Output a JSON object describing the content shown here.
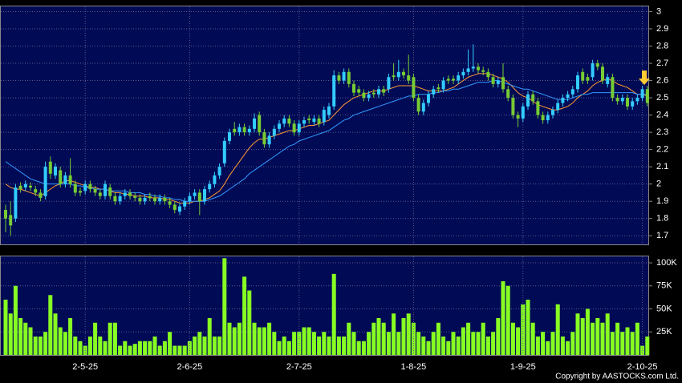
{
  "chart_data": [
    {
      "type": "candlestick",
      "categories": [
        null,
        null,
        null,
        null,
        null,
        null,
        null,
        null,
        null,
        null,
        null,
        null,
        null,
        null,
        null,
        null,
        "2-5-25",
        null,
        null,
        null,
        null,
        null,
        null,
        null,
        null,
        null,
        null,
        null,
        null,
        null,
        null,
        null,
        null,
        null,
        null,
        null,
        null,
        "2-6-25",
        null,
        null,
        null,
        null,
        null,
        null,
        null,
        null,
        null,
        null,
        null,
        null,
        null,
        null,
        null,
        null,
        null,
        null,
        null,
        null,
        null,
        "2-7-25",
        null,
        null,
        null,
        null,
        null,
        null,
        null,
        null,
        null,
        null,
        null,
        null,
        null,
        null,
        null,
        null,
        null,
        null,
        null,
        null,
        null,
        null,
        "1-8-25",
        null,
        null,
        null,
        null,
        null,
        null,
        null,
        null,
        null,
        null,
        null,
        null,
        null,
        null,
        null,
        null,
        null,
        null,
        null,
        null,
        null,
        "1-9-25",
        null,
        null,
        null,
        null,
        null,
        null,
        null,
        null,
        null,
        null,
        null,
        null,
        null,
        null,
        null,
        null,
        null,
        null,
        null,
        null,
        null,
        null,
        null,
        "2-10-25",
        null
      ],
      "open": [
        1.85,
        1.82,
        1.8,
        1.99,
        1.98,
        1.99,
        1.97,
        1.95,
        1.93,
        2.13,
        2.05,
        2.08,
        2.0,
        2.05,
        2.0,
        1.96,
        1.96,
        2.0,
        1.97,
        1.95,
        1.93,
        1.98,
        1.93,
        1.9,
        1.93,
        1.95,
        1.93,
        1.92,
        1.9,
        1.93,
        1.92,
        1.9,
        1.92,
        1.9,
        1.88,
        1.84,
        1.87,
        1.9,
        1.93,
        1.95,
        1.9,
        1.97,
        2.0,
        2.05,
        2.12,
        2.25,
        2.32,
        2.3,
        2.33,
        2.3,
        2.32,
        2.4,
        2.3,
        2.23,
        2.28,
        2.32,
        2.35,
        2.38,
        2.35,
        2.3,
        2.35,
        2.38,
        2.36,
        2.38,
        2.36,
        2.4,
        2.45,
        2.63,
        2.6,
        2.65,
        2.58,
        2.55,
        2.53,
        2.5,
        2.53,
        2.52,
        2.55,
        2.55,
        2.63,
        2.62,
        2.65,
        2.63,
        2.62,
        2.5,
        2.42,
        2.47,
        2.52,
        2.56,
        2.55,
        2.61,
        2.61,
        2.6,
        2.63,
        2.65,
        2.67,
        2.68,
        2.66,
        2.65,
        2.62,
        2.58,
        2.62,
        2.55,
        2.5,
        2.4,
        2.38,
        2.45,
        2.52,
        2.48,
        2.4,
        2.37,
        2.4,
        2.43,
        2.47,
        2.5,
        2.52,
        2.55,
        2.65,
        2.62,
        2.62,
        2.7,
        2.68,
        2.58,
        2.62,
        2.5,
        2.48,
        2.5,
        2.45,
        2.48,
        2.5,
        2.55
      ],
      "high": [
        1.88,
        1.9,
        2.0,
        2.01,
        2.02,
        2.01,
        1.99,
        1.97,
        2.13,
        2.16,
        2.12,
        2.1,
        2.07,
        2.15,
        2.02,
        1.98,
        2.02,
        2.02,
        1.99,
        1.97,
        2.02,
        2.0,
        1.95,
        1.95,
        1.97,
        1.97,
        1.95,
        1.94,
        1.94,
        1.95,
        1.94,
        1.94,
        1.94,
        1.92,
        1.9,
        1.89,
        1.92,
        1.95,
        1.97,
        1.97,
        1.99,
        2.02,
        2.07,
        2.12,
        2.27,
        2.32,
        2.36,
        2.35,
        2.35,
        2.34,
        2.41,
        2.42,
        2.32,
        2.3,
        2.34,
        2.37,
        2.4,
        2.4,
        2.37,
        2.37,
        2.39,
        2.4,
        2.4,
        2.4,
        2.45,
        2.47,
        2.66,
        2.65,
        2.67,
        2.67,
        2.6,
        2.57,
        2.55,
        2.54,
        2.55,
        2.57,
        2.57,
        2.64,
        2.7,
        2.72,
        2.67,
        2.75,
        2.64,
        2.52,
        2.49,
        2.54,
        2.57,
        2.58,
        2.62,
        2.63,
        2.63,
        2.65,
        2.67,
        2.78,
        2.81,
        2.7,
        2.68,
        2.67,
        2.64,
        2.62,
        2.7,
        2.57,
        2.52,
        2.42,
        2.47,
        2.54,
        2.54,
        2.5,
        2.42,
        2.42,
        2.45,
        2.49,
        2.52,
        2.54,
        2.57,
        2.65,
        2.67,
        2.64,
        2.72,
        2.72,
        2.7,
        2.64,
        2.64,
        2.52,
        2.52,
        2.52,
        2.5,
        2.52,
        2.57,
        2.57
      ],
      "low": [
        1.72,
        1.7,
        1.78,
        1.95,
        1.96,
        1.96,
        1.93,
        1.9,
        1.91,
        2.03,
        2.03,
        1.98,
        1.98,
        1.98,
        1.93,
        1.93,
        1.94,
        1.95,
        1.93,
        1.91,
        1.91,
        1.91,
        1.88,
        1.88,
        1.91,
        1.91,
        1.9,
        1.88,
        1.88,
        1.9,
        1.88,
        1.88,
        1.88,
        1.86,
        1.83,
        1.82,
        1.85,
        1.88,
        1.91,
        1.82,
        1.88,
        1.95,
        1.98,
        2.03,
        2.1,
        2.23,
        2.28,
        2.28,
        2.28,
        2.28,
        2.3,
        2.28,
        2.21,
        2.21,
        2.26,
        2.3,
        2.33,
        2.33,
        2.28,
        2.28,
        2.33,
        2.35,
        2.34,
        2.33,
        2.34,
        2.38,
        2.43,
        2.58,
        2.58,
        2.56,
        2.51,
        2.51,
        2.48,
        2.48,
        2.5,
        2.5,
        2.51,
        2.53,
        2.6,
        2.6,
        2.61,
        2.58,
        2.48,
        2.4,
        2.4,
        2.45,
        2.5,
        2.53,
        2.53,
        2.58,
        2.58,
        2.58,
        2.61,
        2.63,
        2.65,
        2.64,
        2.63,
        2.6,
        2.56,
        2.56,
        2.53,
        2.48,
        2.38,
        2.33,
        2.36,
        2.43,
        2.46,
        2.38,
        2.35,
        2.35,
        2.38,
        2.41,
        2.45,
        2.48,
        2.5,
        2.53,
        2.58,
        2.58,
        2.6,
        2.66,
        2.58,
        2.56,
        2.48,
        2.46,
        2.46,
        2.43,
        2.43,
        2.46,
        2.48,
        2.45
      ],
      "close": [
        1.8,
        1.76,
        1.98,
        1.97,
        2.0,
        1.98,
        1.95,
        1.92,
        2.1,
        2.06,
        2.1,
        2.0,
        2.05,
        2.0,
        1.95,
        1.95,
        2.0,
        1.97,
        1.95,
        1.93,
        2.0,
        1.93,
        1.9,
        1.93,
        1.95,
        1.93,
        1.92,
        1.9,
        1.92,
        1.92,
        1.9,
        1.92,
        1.9,
        1.88,
        1.85,
        1.87,
        1.9,
        1.93,
        1.95,
        1.9,
        1.97,
        2.0,
        2.05,
        2.1,
        2.25,
        2.3,
        2.3,
        2.33,
        2.3,
        2.32,
        2.38,
        2.3,
        2.23,
        2.28,
        2.32,
        2.35,
        2.38,
        2.35,
        2.3,
        2.35,
        2.37,
        2.37,
        2.38,
        2.35,
        2.43,
        2.45,
        2.63,
        2.6,
        2.65,
        2.58,
        2.53,
        2.53,
        2.5,
        2.52,
        2.52,
        2.55,
        2.53,
        2.62,
        2.62,
        2.65,
        2.63,
        2.6,
        2.5,
        2.42,
        2.47,
        2.52,
        2.55,
        2.55,
        2.6,
        2.6,
        2.6,
        2.63,
        2.65,
        2.67,
        2.68,
        2.66,
        2.65,
        2.62,
        2.58,
        2.6,
        2.55,
        2.5,
        2.4,
        2.38,
        2.45,
        2.52,
        2.48,
        2.4,
        2.37,
        2.4,
        2.43,
        2.47,
        2.5,
        2.52,
        2.55,
        2.63,
        2.6,
        2.6,
        2.7,
        2.68,
        2.6,
        2.62,
        2.5,
        2.48,
        2.5,
        2.45,
        2.48,
        2.5,
        2.55,
        2.47
      ],
      "up_color": "#33ccff",
      "down_color": "#77cc33",
      "series": [
        {
          "color": "#ff9933",
          "values": [
            2.0,
            1.98,
            1.97,
            1.97,
            1.96,
            1.95,
            1.94,
            1.93,
            1.95,
            1.97,
            1.99,
            2.0,
            2.02,
            2.02,
            2.01,
            2.0,
            1.99,
            1.98,
            1.98,
            1.97,
            1.97,
            1.96,
            1.95,
            1.95,
            1.94,
            1.94,
            1.93,
            1.93,
            1.93,
            1.92,
            1.92,
            1.92,
            1.91,
            1.91,
            1.9,
            1.89,
            1.89,
            1.89,
            1.9,
            1.9,
            1.91,
            1.92,
            1.94,
            1.96,
            2.0,
            2.05,
            2.09,
            2.13,
            2.17,
            2.21,
            2.24,
            2.26,
            2.26,
            2.27,
            2.28,
            2.29,
            2.3,
            2.31,
            2.31,
            2.32,
            2.33,
            2.34,
            2.34,
            2.35,
            2.36,
            2.37,
            2.4,
            2.43,
            2.46,
            2.48,
            2.5,
            2.51,
            2.52,
            2.53,
            2.54,
            2.54,
            2.54,
            2.55,
            2.56,
            2.57,
            2.57,
            2.57,
            2.57,
            2.56,
            2.55,
            2.54,
            2.54,
            2.54,
            2.54,
            2.55,
            2.56,
            2.58,
            2.6,
            2.62,
            2.63,
            2.64,
            2.64,
            2.64,
            2.63,
            2.62,
            2.61,
            2.59,
            2.56,
            2.53,
            2.51,
            2.5,
            2.48,
            2.46,
            2.45,
            2.44,
            2.43,
            2.43,
            2.44,
            2.45,
            2.47,
            2.5,
            2.52,
            2.54,
            2.57,
            2.59,
            2.6,
            2.61,
            2.6,
            2.58,
            2.57,
            2.56,
            2.54,
            2.52,
            2.52,
            2.51
          ]
        },
        {
          "color": "#3399ff",
          "values": [
            2.13,
            2.11,
            2.09,
            2.07,
            2.05,
            2.03,
            2.02,
            2.01,
            2.0,
            2.0,
            2.0,
            2.0,
            2.0,
            2.0,
            1.99,
            1.99,
            1.98,
            1.98,
            1.97,
            1.97,
            1.97,
            1.96,
            1.96,
            1.96,
            1.96,
            1.95,
            1.95,
            1.95,
            1.94,
            1.94,
            1.93,
            1.93,
            1.92,
            1.92,
            1.91,
            1.91,
            1.9,
            1.9,
            1.9,
            1.9,
            1.9,
            1.91,
            1.92,
            1.93,
            1.95,
            1.97,
            1.99,
            2.01,
            2.03,
            2.06,
            2.08,
            2.1,
            2.12,
            2.14,
            2.16,
            2.18,
            2.2,
            2.22,
            2.23,
            2.25,
            2.26,
            2.27,
            2.28,
            2.29,
            2.3,
            2.31,
            2.33,
            2.35,
            2.37,
            2.38,
            2.4,
            2.41,
            2.42,
            2.43,
            2.44,
            2.45,
            2.46,
            2.47,
            2.48,
            2.49,
            2.5,
            2.51,
            2.51,
            2.52,
            2.52,
            2.52,
            2.53,
            2.53,
            2.54,
            2.54,
            2.55,
            2.55,
            2.56,
            2.57,
            2.58,
            2.59,
            2.59,
            2.59,
            2.6,
            2.6,
            2.59,
            2.58,
            2.57,
            2.56,
            2.55,
            2.55,
            2.54,
            2.53,
            2.52,
            2.51,
            2.5,
            2.49,
            2.49,
            2.49,
            2.5,
            2.51,
            2.52,
            2.52,
            2.53,
            2.53,
            2.53,
            2.53,
            2.53,
            2.53,
            2.53,
            2.53,
            2.53,
            2.52,
            2.52,
            2.52
          ]
        }
      ],
      "ylim": [
        1.65,
        3.03
      ],
      "yticks": [
        1.7,
        1.8,
        1.9,
        2,
        2.1,
        2.2,
        2.3,
        2.4,
        2.5,
        2.6,
        2.7,
        2.8,
        2.9,
        3
      ],
      "grid": true
    },
    {
      "type": "bar",
      "categories": [
        null,
        null,
        null,
        null,
        null,
        null,
        null,
        null,
        null,
        null,
        null,
        null,
        null,
        null,
        null,
        null,
        "2-5-25",
        null,
        null,
        null,
        null,
        null,
        null,
        null,
        null,
        null,
        null,
        null,
        null,
        null,
        null,
        null,
        null,
        null,
        null,
        null,
        null,
        "2-6-25",
        null,
        null,
        null,
        null,
        null,
        null,
        null,
        null,
        null,
        null,
        null,
        null,
        null,
        null,
        null,
        null,
        null,
        null,
        null,
        null,
        null,
        "2-7-25",
        null,
        null,
        null,
        null,
        null,
        null,
        null,
        null,
        null,
        null,
        null,
        null,
        null,
        null,
        null,
        null,
        null,
        null,
        null,
        null,
        null,
        null,
        "1-8-25",
        null,
        null,
        null,
        null,
        null,
        null,
        null,
        null,
        null,
        null,
        null,
        null,
        null,
        null,
        null,
        null,
        null,
        null,
        null,
        null,
        null,
        "1-9-25",
        null,
        null,
        null,
        null,
        null,
        null,
        null,
        null,
        null,
        null,
        null,
        null,
        null,
        null,
        null,
        null,
        null,
        null,
        null,
        null,
        null,
        null,
        null,
        "2-10-25",
        null
      ],
      "values": [
        60000,
        45000,
        75000,
        40000,
        35000,
        30000,
        20000,
        20000,
        25000,
        65000,
        45000,
        30000,
        25000,
        40000,
        20000,
        15000,
        10000,
        20000,
        35000,
        20000,
        15000,
        35000,
        35000,
        10000,
        15000,
        10000,
        12000,
        15000,
        15000,
        15000,
        20000,
        10000,
        15000,
        25000,
        10000,
        10000,
        10000,
        15000,
        20000,
        25000,
        20000,
        40000,
        20000,
        20000,
        105000,
        35000,
        30000,
        35000,
        85000,
        70000,
        35000,
        30000,
        30000,
        35000,
        25000,
        15000,
        20000,
        15000,
        25000,
        25000,
        30000,
        30000,
        25000,
        20000,
        25000,
        20000,
        88000,
        20000,
        20000,
        35000,
        25000,
        15000,
        15000,
        25000,
        35000,
        40000,
        35000,
        25000,
        45000,
        25000,
        40000,
        45000,
        35000,
        25000,
        20000,
        15000,
        25000,
        35000,
        20000,
        15000,
        25000,
        20000,
        30000,
        35000,
        25000,
        25000,
        35000,
        20000,
        25000,
        40000,
        80000,
        75000,
        35000,
        30000,
        55000,
        60000,
        35000,
        20000,
        25000,
        15000,
        25000,
        55000,
        20000,
        15000,
        25000,
        45000,
        40000,
        50000,
        35000,
        40000,
        35000,
        45000,
        25000,
        35000,
        25000,
        30000,
        25000,
        35000,
        10000,
        20000
      ],
      "color": "#88ff22",
      "ylim": [
        0,
        107000
      ],
      "yticks": [
        {
          "value": 25000,
          "label": "25K"
        },
        {
          "value": 50000,
          "label": "50K"
        },
        {
          "value": 75000,
          "label": "75K"
        },
        {
          "value": 100000,
          "label": "100K"
        }
      ],
      "grid": true,
      "footnote": "Copyright by AASTOCKS.com Ltd."
    }
  ]
}
